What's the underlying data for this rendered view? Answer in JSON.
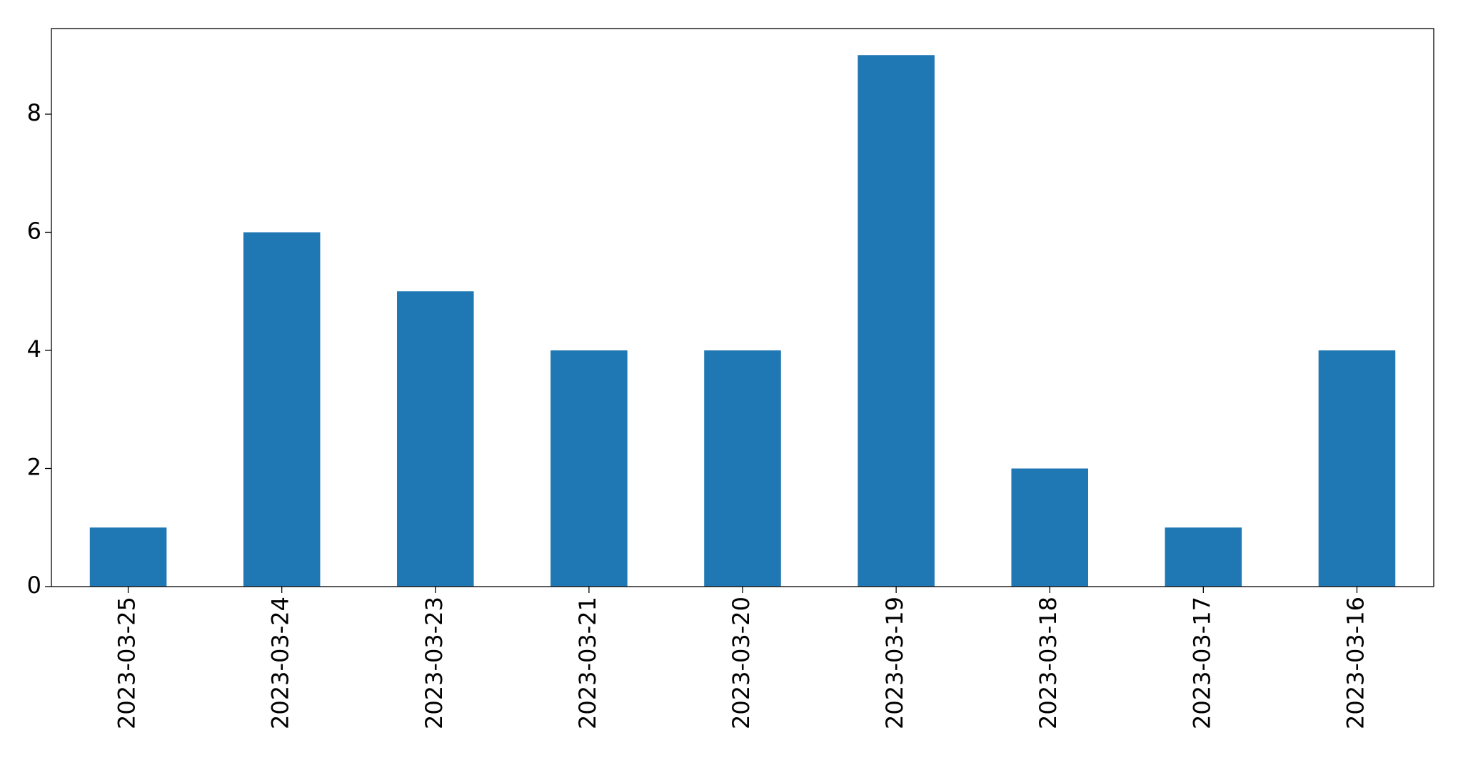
{
  "chart_data": {
    "type": "bar",
    "categories": [
      "2023-03-25",
      "2023-03-24",
      "2023-03-23",
      "2023-03-21",
      "2023-03-20",
      "2023-03-19",
      "2023-03-18",
      "2023-03-17",
      "2023-03-16"
    ],
    "values": [
      1,
      6,
      5,
      4,
      4,
      9,
      2,
      1,
      4
    ],
    "color": "#1f77b4",
    "ylim": [
      0,
      9.45
    ],
    "yticks": [
      0,
      2,
      4,
      6,
      8
    ],
    "grid": false
  }
}
